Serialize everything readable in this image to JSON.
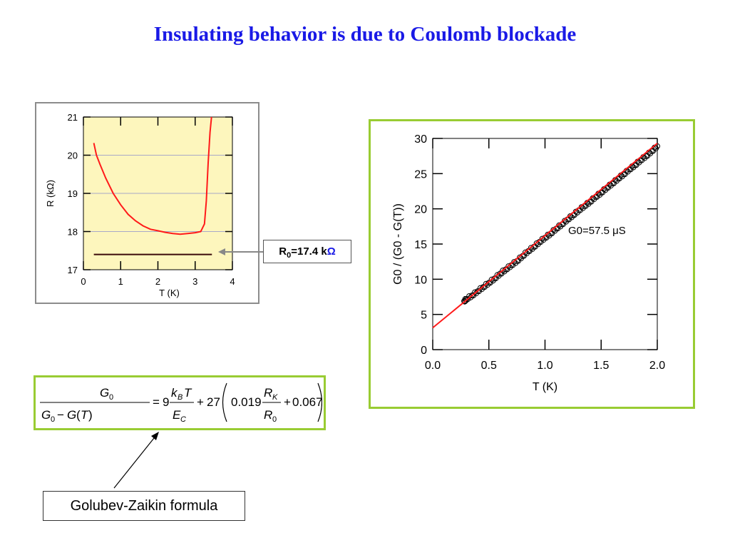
{
  "slide": {
    "title": "Insulating behavior is due to Coulomb blockade",
    "callout": "R₀=17.4 kΩ",
    "formula_label": "Golubev-Zaikin formula"
  },
  "colors": {
    "title": "#1a1ae6",
    "frame_green": "#99cc33",
    "plot_bg_left": "#fdf6bd",
    "curve_red": "#ff1a1a",
    "baseline_dark": "#3a0a0a"
  },
  "chart_data": [
    {
      "type": "line",
      "xlabel": "T (K)",
      "ylabel": "R (kΩ)",
      "xlim": [
        0,
        4
      ],
      "ylim": [
        17,
        21
      ],
      "xticks": [
        "0",
        "1",
        "2",
        "3",
        "4"
      ],
      "yticks": [
        "17",
        "18",
        "19",
        "20",
        "21"
      ],
      "grid": "horizontal",
      "series": [
        {
          "points": [
            [
              0.28,
              20.32
            ],
            [
              0.35,
              20.0
            ],
            [
              0.45,
              19.75
            ],
            [
              0.6,
              19.4
            ],
            [
              0.8,
              19.0
            ],
            [
              1.0,
              18.7
            ],
            [
              1.2,
              18.45
            ],
            [
              1.4,
              18.28
            ],
            [
              1.6,
              18.15
            ],
            [
              1.8,
              18.06
            ],
            [
              2.0,
              18.02
            ],
            [
              2.2,
              17.98
            ],
            [
              2.4,
              17.95
            ],
            [
              2.6,
              17.93
            ],
            [
              2.8,
              17.95
            ],
            [
              3.0,
              17.97
            ],
            [
              3.15,
              18.0
            ],
            [
              3.25,
              18.2
            ],
            [
              3.3,
              18.8
            ],
            [
              3.35,
              19.8
            ],
            [
              3.4,
              20.6
            ],
            [
              3.44,
              21.0
            ]
          ]
        },
        {
          "points": [
            [
              0.28,
              17.4
            ],
            [
              3.45,
              17.4
            ]
          ]
        }
      ]
    },
    {
      "type": "scatter",
      "xlabel": "T (K)",
      "ylabel": "G0 / (G0 - G(T))",
      "xlim": [
        0.0,
        2.0
      ],
      "ylim": [
        0,
        30
      ],
      "xticks": [
        "0.0",
        "0.5",
        "1.0",
        "1.5",
        "2.0"
      ],
      "yticks": [
        "0",
        "5",
        "10",
        "15",
        "20",
        "25",
        "30"
      ],
      "annotation": "G0=57.5 μS",
      "series": [
        {
          "points": [
            [
              0.28,
              6.9
            ],
            [
              0.3,
              7.2
            ],
            [
              0.35,
              7.7
            ],
            [
              0.4,
              8.3
            ],
            [
              0.45,
              8.9
            ],
            [
              0.5,
              9.5
            ],
            [
              0.55,
              10.1
            ],
            [
              0.6,
              10.8
            ],
            [
              0.65,
              11.4
            ],
            [
              0.7,
              12.0
            ],
            [
              0.75,
              12.6
            ],
            [
              0.8,
              13.3
            ],
            [
              0.85,
              14.0
            ],
            [
              0.9,
              14.6
            ],
            [
              0.95,
              15.3
            ],
            [
              1.0,
              15.9
            ],
            [
              1.05,
              16.5
            ],
            [
              1.1,
              17.2
            ],
            [
              1.15,
              17.8
            ],
            [
              1.2,
              18.5
            ],
            [
              1.25,
              19.1
            ],
            [
              1.3,
              19.8
            ],
            [
              1.35,
              20.4
            ],
            [
              1.4,
              21.0
            ],
            [
              1.45,
              21.7
            ],
            [
              1.5,
              22.3
            ],
            [
              1.55,
              23.0
            ],
            [
              1.6,
              23.6
            ],
            [
              1.65,
              24.3
            ],
            [
              1.7,
              24.9
            ],
            [
              1.75,
              25.6
            ],
            [
              1.8,
              26.2
            ],
            [
              1.85,
              26.9
            ],
            [
              1.9,
              27.5
            ],
            [
              1.95,
              28.2
            ],
            [
              2.0,
              28.9
            ]
          ]
        },
        {
          "fit": [
            [
              0.0,
              3.1
            ],
            [
              2.0,
              29.3
            ]
          ]
        }
      ]
    }
  ]
}
